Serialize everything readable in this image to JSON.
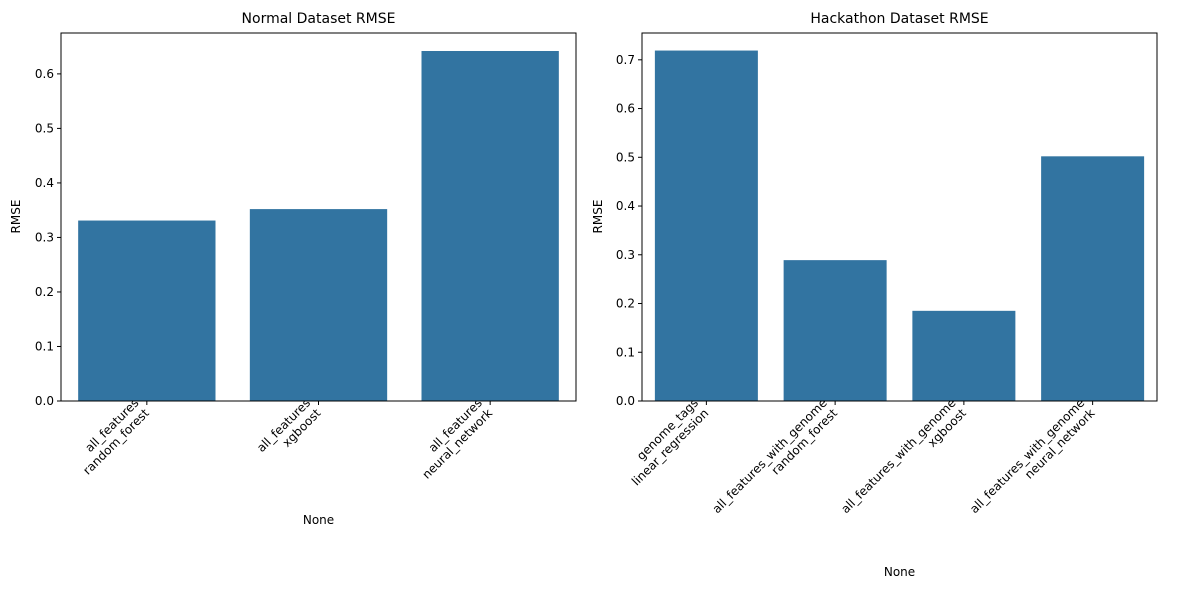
{
  "chart_data": [
    {
      "type": "bar",
      "title": "Normal Dataset RMSE",
      "xlabel": "None",
      "ylabel": "RMSE",
      "categories": [
        [
          "all_features",
          "random_forest"
        ],
        [
          "all_features",
          "xgboost"
        ],
        [
          "all_features",
          "neural_network"
        ]
      ],
      "values": [
        0.331,
        0.352,
        0.642
      ],
      "ylim": [
        0,
        0.675
      ],
      "yticks": [
        0.0,
        0.1,
        0.2,
        0.3,
        0.4,
        0.5,
        0.6
      ],
      "ytick_labels": [
        "0.0",
        "0.1",
        "0.2",
        "0.3",
        "0.4",
        "0.5",
        "0.6"
      ],
      "bar_color": "#3274a1",
      "grid": false
    },
    {
      "type": "bar",
      "title": "Hackathon Dataset RMSE",
      "xlabel": "None",
      "ylabel": "RMSE",
      "categories": [
        [
          "genome_tags",
          "linear_regression"
        ],
        [
          "all_features_with_genome",
          "random_forest"
        ],
        [
          "all_features_with_genome",
          "xgboost"
        ],
        [
          "all_features_with_genome",
          "neural_network"
        ]
      ],
      "values": [
        0.719,
        0.289,
        0.185,
        0.502
      ],
      "ylim": [
        0,
        0.755
      ],
      "yticks": [
        0.0,
        0.1,
        0.2,
        0.3,
        0.4,
        0.5,
        0.6,
        0.7
      ],
      "ytick_labels": [
        "0.0",
        "0.1",
        "0.2",
        "0.3",
        "0.4",
        "0.5",
        "0.6",
        "0.7"
      ],
      "bar_color": "#3274a1",
      "grid": false
    }
  ]
}
